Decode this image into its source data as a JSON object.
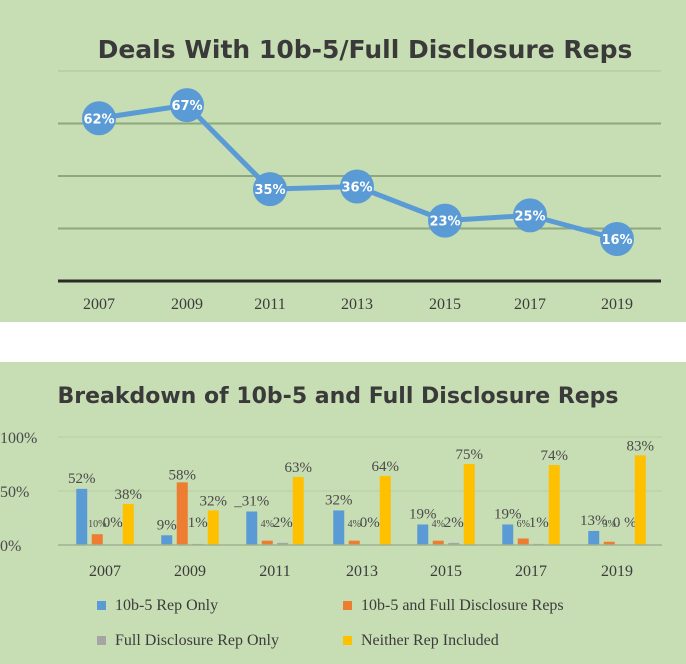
{
  "chart_data": [
    {
      "type": "line",
      "title": "Deals With 10b-5/Full Disclosure Reps",
      "categories": [
        "2007",
        "2009",
        "2011",
        "2013",
        "2015",
        "2017",
        "2019"
      ],
      "values": [
        62,
        67,
        35,
        36,
        23,
        25,
        16
      ],
      "point_labels": [
        "62%",
        "67%",
        "35%",
        "36%",
        "23%",
        "25%",
        "16%"
      ],
      "ylim": [
        0,
        80
      ],
      "grid": true,
      "colors": {
        "line": "#5b9bd5",
        "marker": "#5b9bd5"
      }
    },
    {
      "type": "bar",
      "title": "Breakdown of 10b-5 and Full Disclosure Reps",
      "categories": [
        "2007",
        "2009",
        "2011",
        "2013",
        "2015",
        "2017",
        "2019"
      ],
      "y_ticks": [
        "0%",
        "50%",
        "100%"
      ],
      "ylim": [
        0,
        100
      ],
      "legend_position": "bottom",
      "series": [
        {
          "name": "10b-5 Rep Only",
          "color": "#5b9bd5",
          "values": [
            52,
            9,
            31,
            32,
            19,
            19,
            13
          ]
        },
        {
          "name": "10b-5 and Full Disclosure Reps",
          "color": "#ed7d31",
          "values": [
            10,
            58,
            4,
            4,
            4,
            6,
            3
          ]
        },
        {
          "name": "Full Disclosure Rep Only",
          "color": "#a5a5a5",
          "values": [
            0,
            1,
            2,
            0,
            2,
            1,
            0
          ]
        },
        {
          "name": "Neither Rep Included",
          "color": "#ffc000",
          "values": [
            38,
            32,
            63,
            64,
            75,
            74,
            83
          ]
        }
      ],
      "data_labels": [
        [
          "52%",
          "9%",
          "_31%",
          "32%",
          "19%",
          "19%",
          "13%"
        ],
        [
          "10%",
          "58%",
          "4%",
          "4%",
          "4%",
          "6%",
          "3%"
        ],
        [
          "0%",
          "1%",
          "2%",
          "0%",
          "2%",
          "1%",
          "0 %"
        ],
        [
          "38%",
          "32%",
          "63%",
          "64%",
          "75%",
          "74%",
          "83%"
        ]
      ]
    }
  ]
}
